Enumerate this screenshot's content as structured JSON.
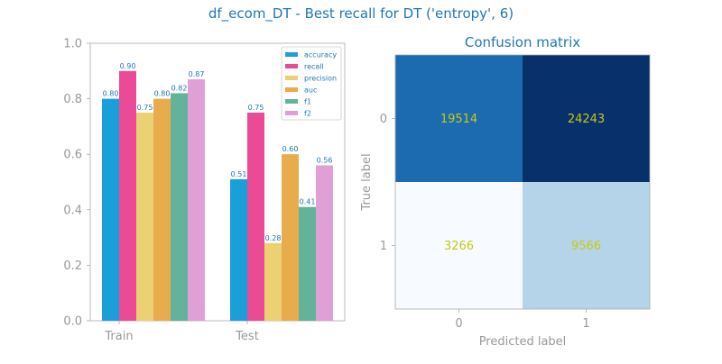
{
  "suptitle": "df_ecom_DT - Best recall for DT ('entropy', 6)",
  "chart_data": [
    {
      "type": "bar",
      "categories": [
        "Train",
        "Test"
      ],
      "series": [
        {
          "name": "accuracy",
          "values": [
            0.8,
            0.51
          ],
          "color": "#1a9fd8"
        },
        {
          "name": "recall",
          "values": [
            0.9,
            0.75
          ],
          "color": "#eb4a97"
        },
        {
          "name": "precision",
          "values": [
            0.75,
            0.28
          ],
          "color": "#ecd172"
        },
        {
          "name": "auc",
          "values": [
            0.8,
            0.6
          ],
          "color": "#e8ac4c"
        },
        {
          "name": "f1",
          "values": [
            0.82,
            0.41
          ],
          "color": "#63b29c"
        },
        {
          "name": "f2",
          "values": [
            0.87,
            0.56
          ],
          "color": "#e0a0d6"
        }
      ],
      "data_labels": [
        [
          "0.80",
          "0.90",
          "0.75",
          "0.80",
          "0.82",
          "0.87"
        ],
        [
          "0.51",
          "0.75",
          "0.28",
          "0.60",
          "0.41",
          "0.56"
        ]
      ],
      "ylim": [
        0,
        1
      ],
      "yticks": [
        "0.0",
        "0.2",
        "0.4",
        "0.6",
        "0.8",
        "1.0"
      ],
      "legend_position": "top-right",
      "grid": false
    },
    {
      "type": "heatmap",
      "title": "Confusion matrix",
      "xlabel": "Predicted label",
      "ylabel": "True label",
      "x_ticks": [
        "0",
        "1"
      ],
      "y_ticks": [
        "0",
        "1"
      ],
      "matrix": [
        [
          19514,
          24243
        ],
        [
          3266,
          9566
        ]
      ],
      "cell_colors": [
        [
          "#1c6bb0",
          "#08306b"
        ],
        [
          "#f7fbff",
          "#b6d4e9"
        ]
      ],
      "text_color": "#c8c814"
    }
  ]
}
